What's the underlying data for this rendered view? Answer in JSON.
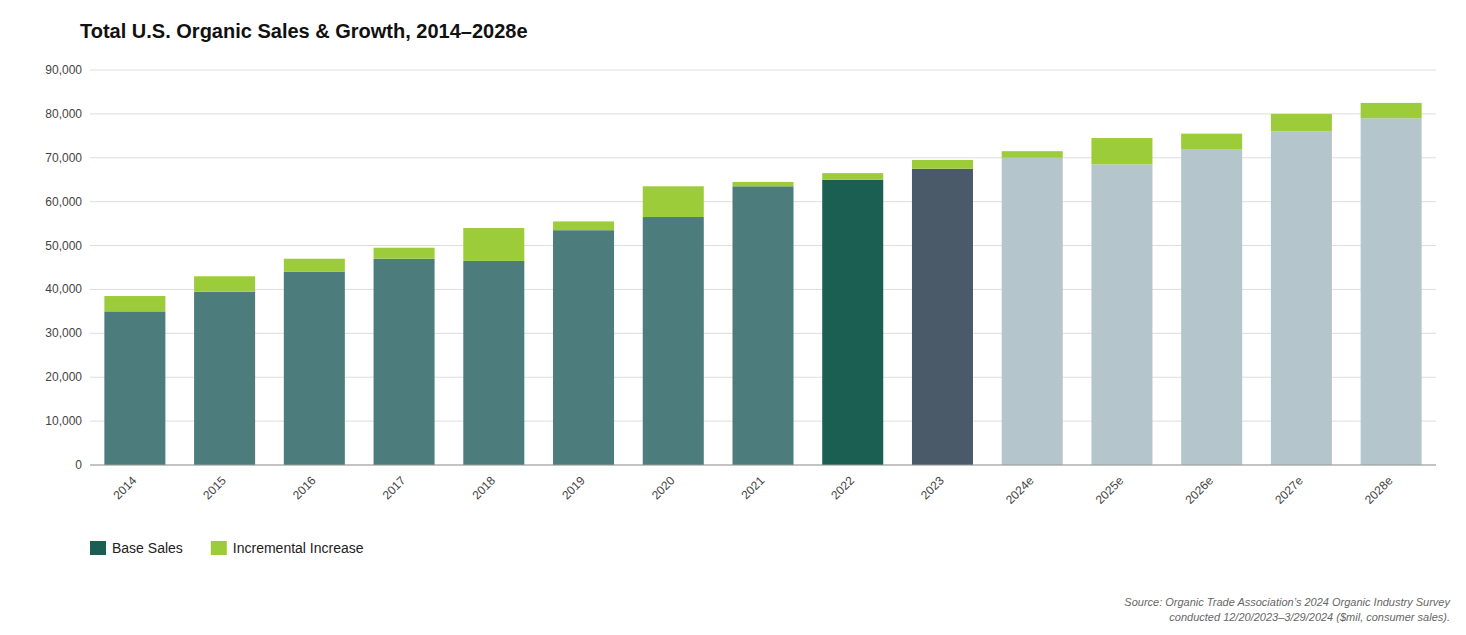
{
  "chart_data": {
    "type": "bar",
    "stacked": true,
    "title": "Total U.S. Organic Sales & Growth, 2014–2028e",
    "categories": [
      "2014",
      "2015",
      "2016",
      "2017",
      "2018",
      "2019",
      "2020",
      "2021",
      "2022",
      "2023",
      "2024e",
      "2025e",
      "2026e",
      "2027e",
      "2028e"
    ],
    "series": [
      {
        "name": "Base Sales",
        "color": "#1b5e52",
        "colors": [
          "#4d7c7c",
          "#4d7c7c",
          "#4d7c7c",
          "#4d7c7c",
          "#4d7c7c",
          "#4d7c7c",
          "#4d7c7c",
          "#4d7c7c",
          "#1b5e52",
          "#4a5a68",
          "#b5c5cc",
          "#b5c5cc",
          "#b5c5cc",
          "#b5c5cc",
          "#b5c5cc"
        ],
        "values": [
          35000,
          39500,
          44000,
          47000,
          46500,
          53500,
          56500,
          63500,
          65000,
          67500,
          70000,
          68500,
          72000,
          76000,
          79000
        ]
      },
      {
        "name": "Incremental Increase",
        "color": "#9dcc3a",
        "values": [
          3500,
          3500,
          3000,
          2500,
          7500,
          2000,
          7000,
          1000,
          1500,
          2000,
          1500,
          6000,
          3500,
          4000,
          3500
        ]
      }
    ],
    "ylim": [
      0,
      90000
    ],
    "yticks": [
      0,
      {
        "value": 10000,
        "label": "10,000"
      },
      {
        "value": 20000,
        "label": "20,000"
      },
      {
        "value": 30000,
        "label": "30,000"
      },
      {
        "value": 40000,
        "label": "40,000"
      },
      {
        "value": 50000,
        "label": "50,000"
      },
      {
        "value": 60000,
        "label": "60,000"
      },
      {
        "value": 70000,
        "label": "70,000"
      },
      {
        "value": 80000,
        "label": "80,000"
      },
      {
        "value": 90000,
        "label": "90,000"
      }
    ],
    "grid": true,
    "legend": "lower-left",
    "annotations": [
      "Source: Organic Trade Association’s 2024 Organic Industry Survey\nconducted 12/20/2023–3/29/2024 ($mil, consumer sales)."
    ]
  }
}
